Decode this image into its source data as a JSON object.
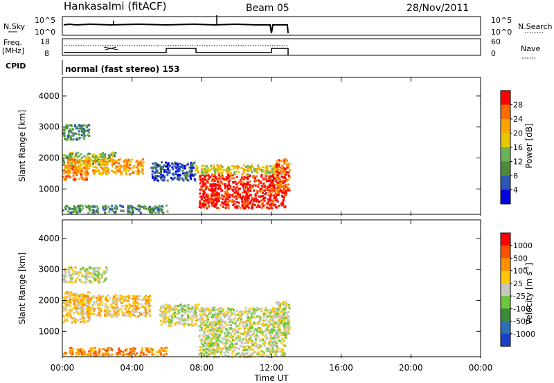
{
  "header": {
    "station": "Hankasalmi (fitACF)",
    "beam": "Beam 05",
    "date": "28/Nov/2011"
  },
  "noise_panel": {
    "left_label": "N.Sky",
    "right_label": "N.Search",
    "left_ticks": [
      "10^5",
      "10^0"
    ],
    "right_ticks": [
      "10^5",
      "10^0"
    ]
  },
  "freq_panel": {
    "left_label_1": "Freq.",
    "left_label_2": "[MHz]",
    "right_label": "Nave",
    "left_ticks": [
      "18",
      "8"
    ],
    "right_ticks": [
      "60",
      "0"
    ]
  },
  "cpid": {
    "label": "CPID",
    "mode": "normal (fast stereo) 153"
  },
  "x_axis": {
    "title": "Time UT",
    "ticks": [
      "00:00",
      "04:00",
      "08:00",
      "12:00",
      "16:00",
      "20:00",
      "00:00"
    ],
    "range_hours": [
      0,
      24
    ],
    "tick_hours": [
      0,
      4,
      8,
      12,
      16,
      20,
      24
    ]
  },
  "chart_data": [
    {
      "type": "heatmap",
      "ylabel": "Slant Range [km]",
      "ylim": [
        180,
        4600
      ],
      "yticks": [
        "1000",
        "2000",
        "3000",
        "4000"
      ],
      "ytick_values": [
        1000,
        2000,
        3000,
        4000
      ],
      "colorbar": {
        "label": "Power [dB]",
        "ticks": [
          "4",
          "8",
          "12",
          "16",
          "20",
          "24",
          "28"
        ],
        "colors": [
          "#0000e0",
          "#2d57b4",
          "#4f8a3a",
          "#6ab35a",
          "#e8c800",
          "#ffa500",
          "#ff6a00",
          "#ff0000"
        ]
      },
      "regions": [
        {
          "t": [
            0.0,
            1.4
          ],
          "r": [
            1300,
            1800
          ],
          "level": 6
        },
        {
          "t": [
            0.0,
            3.0
          ],
          "r": [
            1800,
            2200
          ],
          "level": 3
        },
        {
          "t": [
            0.2,
            4.6
          ],
          "r": [
            1500,
            2000
          ],
          "level": 5
        },
        {
          "t": [
            0.0,
            1.5
          ],
          "r": [
            2600,
            3100
          ],
          "level": 2
        },
        {
          "t": [
            7.8,
            12.8
          ],
          "r": [
            400,
            1500
          ],
          "level": 7
        },
        {
          "t": [
            7.6,
            12.8
          ],
          "r": [
            1500,
            1800
          ],
          "level": 4
        },
        {
          "t": [
            12.2,
            13.0
          ],
          "r": [
            900,
            2000
          ],
          "level": 6
        },
        {
          "t": [
            5.0,
            7.6
          ],
          "r": [
            1300,
            1900
          ],
          "level": 1
        },
        {
          "t": [
            0.0,
            6.0
          ],
          "r": [
            250,
            500
          ],
          "level": 2
        }
      ]
    },
    {
      "type": "heatmap",
      "ylabel": "Slant Range [km]",
      "ylim": [
        180,
        4600
      ],
      "yticks": [
        "1000",
        "2000",
        "3000",
        "4000"
      ],
      "ytick_values": [
        1000,
        2000,
        3000,
        4000
      ],
      "colorbar": {
        "label": "Velocity [m s^-1]",
        "ticks": [
          "1000",
          "500",
          "100",
          "25",
          "-25",
          "-100",
          "-500",
          "-1000"
        ],
        "colors": [
          "#1a3fc8",
          "#2d6fb4",
          "#3a8a3a",
          "#6cc83a",
          "#c8c8c0",
          "#ffc800",
          "#ff9000",
          "#ff5000",
          "#ff0000"
        ]
      },
      "regions": [
        {
          "t": [
            0.0,
            1.5
          ],
          "r": [
            1300,
            2300
          ],
          "level": 5
        },
        {
          "t": [
            1.0,
            5.0
          ],
          "r": [
            1500,
            2200
          ],
          "level": 5
        },
        {
          "t": [
            0.0,
            2.5
          ],
          "r": [
            2600,
            3100
          ],
          "level": 4
        },
        {
          "t": [
            7.8,
            12.8
          ],
          "r": [
            200,
            1800
          ],
          "level": 4
        },
        {
          "t": [
            5.5,
            7.8
          ],
          "r": [
            1200,
            1900
          ],
          "level": 4
        },
        {
          "t": [
            12.2,
            13.0
          ],
          "r": [
            900,
            2000
          ],
          "level": 4
        },
        {
          "t": [
            0.0,
            6.0
          ],
          "r": [
            250,
            500
          ],
          "level": 6
        }
      ]
    }
  ]
}
